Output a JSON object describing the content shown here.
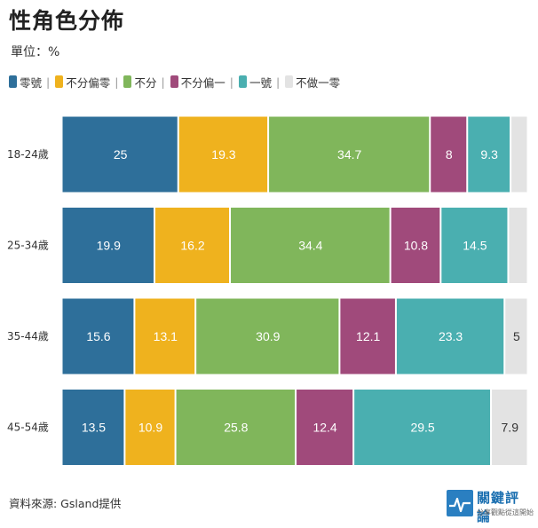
{
  "title": "性角色分佈",
  "subtitle": "單位：%",
  "source": "資料來源: Gsland提供",
  "logo": {
    "main": "關鍵評論",
    "sub": "分享觀點從這開始"
  },
  "chart_data": {
    "type": "bar",
    "orientation": "horizontal",
    "stacked": true,
    "categories": [
      "18-24歲",
      "25-34歲",
      "35-44歲",
      "45-54歲"
    ],
    "series": [
      {
        "name": "零號",
        "color": "#2e6f9a",
        "values": [
          25,
          19.9,
          15.6,
          13.5
        ]
      },
      {
        "name": "不分偏零",
        "color": "#efb21e",
        "values": [
          19.3,
          16.2,
          13.1,
          10.9
        ]
      },
      {
        "name": "不分",
        "color": "#80b65b",
        "values": [
          34.7,
          34.4,
          30.9,
          25.8
        ]
      },
      {
        "name": "不分偏一",
        "color": "#a04a7b",
        "values": [
          8,
          10.8,
          12.1,
          12.4
        ]
      },
      {
        "name": "一號",
        "color": "#4aafb0",
        "values": [
          9.3,
          14.5,
          23.3,
          29.5
        ]
      },
      {
        "name": "不做一零",
        "color": "#e3e3e3",
        "values": [
          3.7,
          4.2,
          5,
          7.9
        ]
      }
    ],
    "data_labels_shown": [
      [
        true,
        true,
        true,
        true,
        true,
        false
      ],
      [
        true,
        true,
        true,
        true,
        true,
        false
      ],
      [
        true,
        true,
        true,
        true,
        true,
        true
      ],
      [
        true,
        true,
        true,
        true,
        true,
        true
      ]
    ],
    "xlim": [
      0,
      100
    ],
    "legend": "top-left",
    "grid": false
  }
}
